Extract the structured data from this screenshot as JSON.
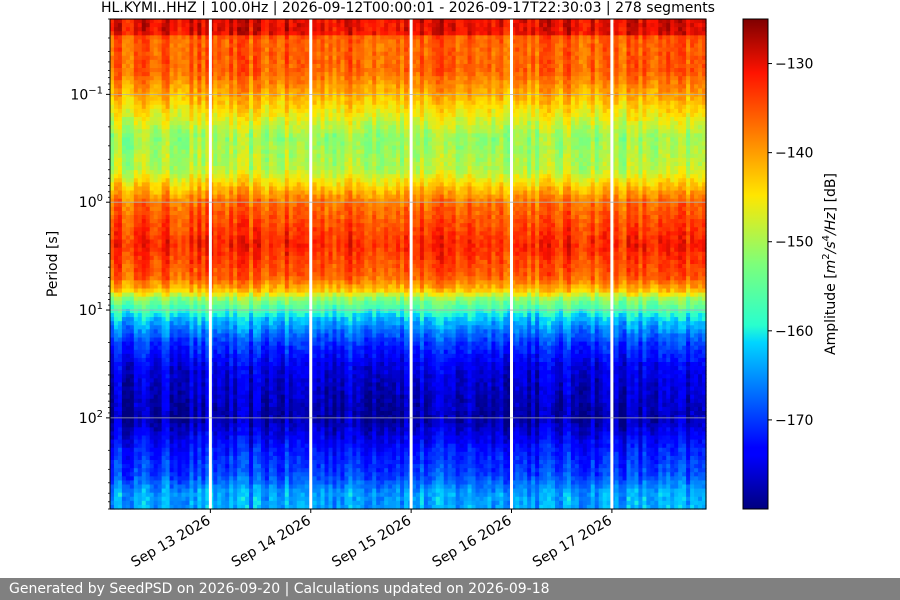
{
  "chart_data": {
    "type": "heatmap",
    "title": "HL.KYMI..HHZ | 100.0Hz | 2026-09-12T00:00:01 - 2026-09-17T22:30:03 | 278 segments",
    "ylabel": "Period [s]",
    "y_scale": "log",
    "y_inverted": true,
    "ylim": [
      0.02,
      700
    ],
    "y_ticks": [
      {
        "value": 0.1,
        "base": "10",
        "exp": "−1"
      },
      {
        "value": 1,
        "base": "10",
        "exp": "0"
      },
      {
        "value": 10,
        "base": "10",
        "exp": "1"
      },
      {
        "value": 100,
        "base": "10",
        "exp": "2"
      }
    ],
    "xlim": [
      "2026-09-12T00:00:01",
      "2026-09-17T22:30:03"
    ],
    "x_ticks": [
      {
        "value": "2026-09-13",
        "label": "Sep 13 2026"
      },
      {
        "value": "2026-09-14",
        "label": "Sep 14 2026"
      },
      {
        "value": "2026-09-15",
        "label": "Sep 15 2026"
      },
      {
        "value": "2026-09-16",
        "label": "Sep 16 2026"
      },
      {
        "value": "2026-09-17",
        "label": "Sep 17 2026"
      }
    ],
    "data_gaps": [
      "2026-09-13",
      "2026-09-14",
      "2026-09-15",
      "2026-09-16",
      "2026-09-17"
    ],
    "grid": true,
    "colorbar": {
      "label_prefix": "Amplitude [",
      "label_unit_m": "m",
      "label_sup1": "2",
      "label_mid": "/s",
      "label_sup2": "4",
      "label_suffix": "/Hz",
      "label_close": "] [dB]",
      "range": [
        -180,
        -125
      ],
      "ticks": [
        -130,
        -140,
        -150,
        -160,
        -170
      ],
      "colormap": "jet"
    },
    "amplitude_profile": [
      {
        "period": 0.02,
        "db": -130
      },
      {
        "period": 0.027,
        "db": -130
      },
      {
        "period": 0.03,
        "db": -136
      },
      {
        "period": 0.06,
        "db": -136
      },
      {
        "period": 0.1,
        "db": -141
      },
      {
        "period": 0.25,
        "db": -151
      },
      {
        "period": 0.5,
        "db": -149
      },
      {
        "period": 1.0,
        "db": -137
      },
      {
        "period": 2.5,
        "db": -132
      },
      {
        "period": 5.0,
        "db": -136
      },
      {
        "period": 6.5,
        "db": -142
      },
      {
        "period": 8.0,
        "db": -152
      },
      {
        "period": 12.0,
        "db": -162
      },
      {
        "period": 20.0,
        "db": -170
      },
      {
        "period": 35.0,
        "db": -175
      },
      {
        "period": 100.0,
        "db": -178
      },
      {
        "period": 200.0,
        "db": -172
      },
      {
        "period": 350.0,
        "db": -169
      },
      {
        "period": 500.0,
        "db": -164
      },
      {
        "period": 700.0,
        "db": -164
      }
    ]
  },
  "footer": {
    "text": "Generated by SeedPSD on 2026-09-20 | Calculations updated on 2026-09-18"
  }
}
